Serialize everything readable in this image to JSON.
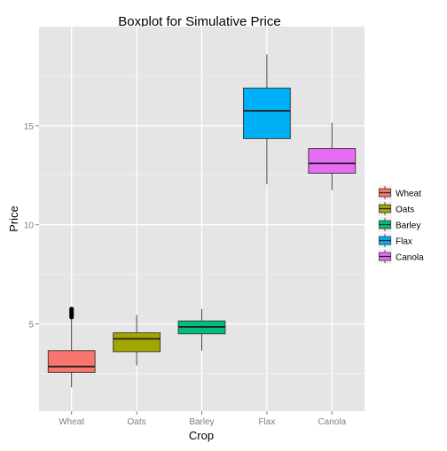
{
  "chart_data": {
    "type": "boxplot",
    "title": "Boxplot for Simulative Price",
    "xlabel": "Crop",
    "ylabel": "Price",
    "ylim": [
      0.6,
      20.0
    ],
    "yticks": [
      5,
      10,
      15
    ],
    "categories": [
      "Wheat",
      "Oats",
      "Barley",
      "Flax",
      "Canola"
    ],
    "boxes": [
      {
        "name": "Wheat",
        "whisker_low": 1.8,
        "q1": 2.55,
        "median": 2.85,
        "q3": 3.65,
        "whisker_high": 5.25,
        "outliers": [
          5.35,
          5.45,
          5.55,
          5.65,
          5.75
        ]
      },
      {
        "name": "Oats",
        "whisker_low": 2.9,
        "q1": 3.6,
        "median": 4.25,
        "q3": 4.55,
        "whisker_high": 5.45,
        "outliers": []
      },
      {
        "name": "Barley",
        "whisker_low": 3.65,
        "q1": 4.5,
        "median": 4.85,
        "q3": 5.15,
        "whisker_high": 5.75,
        "outliers": []
      },
      {
        "name": "Flax",
        "whisker_low": 12.05,
        "q1": 14.35,
        "median": 15.75,
        "q3": 16.9,
        "whisker_high": 18.6,
        "outliers": []
      },
      {
        "name": "Canola",
        "whisker_low": 11.75,
        "q1": 12.6,
        "median": 13.1,
        "q3": 13.85,
        "whisker_high": 15.15,
        "outliers": []
      }
    ],
    "grid": true,
    "legend": {
      "position": "right",
      "entries": [
        "Wheat",
        "Oats",
        "Barley",
        "Flax",
        "Canola"
      ]
    },
    "colors": {
      "Wheat": "#F8766D",
      "Oats": "#A3A500",
      "Barley": "#00BF7D",
      "Flax": "#00B0F6",
      "Canola": "#E76BF3",
      "panel": "#E5E5E5",
      "grid_major": "#FFFFFF",
      "grid_minor": "#F2F2F2",
      "tick_label": "#7F7F7F"
    }
  }
}
